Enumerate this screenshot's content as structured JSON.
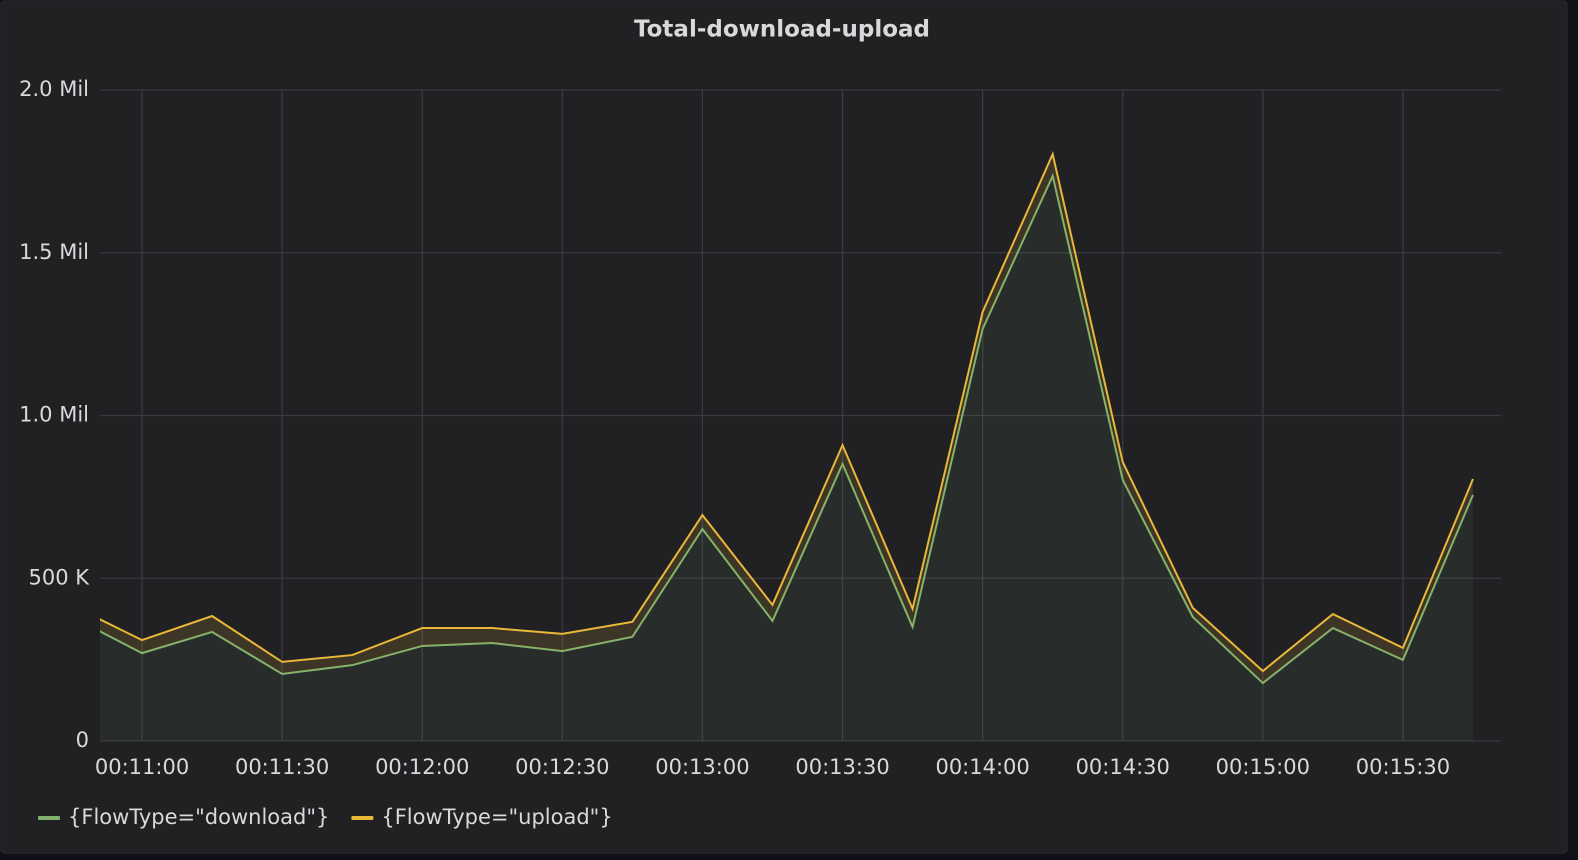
{
  "chart_data": {
    "type": "line",
    "stacked": true,
    "fill": true,
    "grid": true,
    "legend": "bottom-left",
    "title": "Total-download-upload",
    "x": [
      "00:10:45",
      "00:11:00",
      "00:11:15",
      "00:11:30",
      "00:11:45",
      "00:12:00",
      "00:12:15",
      "00:12:30",
      "00:12:45",
      "00:13:00",
      "00:13:15",
      "00:13:30",
      "00:13:45",
      "00:14:00",
      "00:14:15",
      "00:14:30",
      "00:14:45",
      "00:15:00",
      "00:15:15",
      "00:15:30",
      "00:15:45"
    ],
    "xlim": [
      "00:10:51",
      "00:15:51"
    ],
    "xticks": [
      "00:11:00",
      "00:11:30",
      "00:12:00",
      "00:12:30",
      "00:13:00",
      "00:13:30",
      "00:14:00",
      "00:14:30",
      "00:15:00",
      "00:15:30"
    ],
    "ylim": [
      0,
      2000000
    ],
    "yticks": [
      0,
      {
        "value": 500000,
        "label": "500 K"
      },
      {
        "value": 1000000,
        "label": "1.0 Mil"
      },
      {
        "value": 1500000,
        "label": "1.5 Mil"
      },
      {
        "value": 2000000,
        "label": "2.0 Mil"
      }
    ],
    "series": [
      {
        "name": "{FlowType=\"download\"}",
        "color": "#7eb26d",
        "values": [
          381000,
          270000,
          335000,
          206000,
          233000,
          292000,
          301000,
          276000,
          320000,
          651000,
          369000,
          851000,
          350000,
          1266000,
          1736000,
          802000,
          381000,
          178000,
          347000,
          249000,
          756000
        ]
      },
      {
        "name": "{FlowType=\"upload\"}",
        "color": "#eab839",
        "values": [
          35000,
          40000,
          49000,
          37000,
          31000,
          55000,
          46000,
          53000,
          46000,
          43000,
          49000,
          58000,
          56000,
          52000,
          67000,
          55000,
          28000,
          37000,
          43000,
          37000,
          49000
        ]
      }
    ]
  }
}
